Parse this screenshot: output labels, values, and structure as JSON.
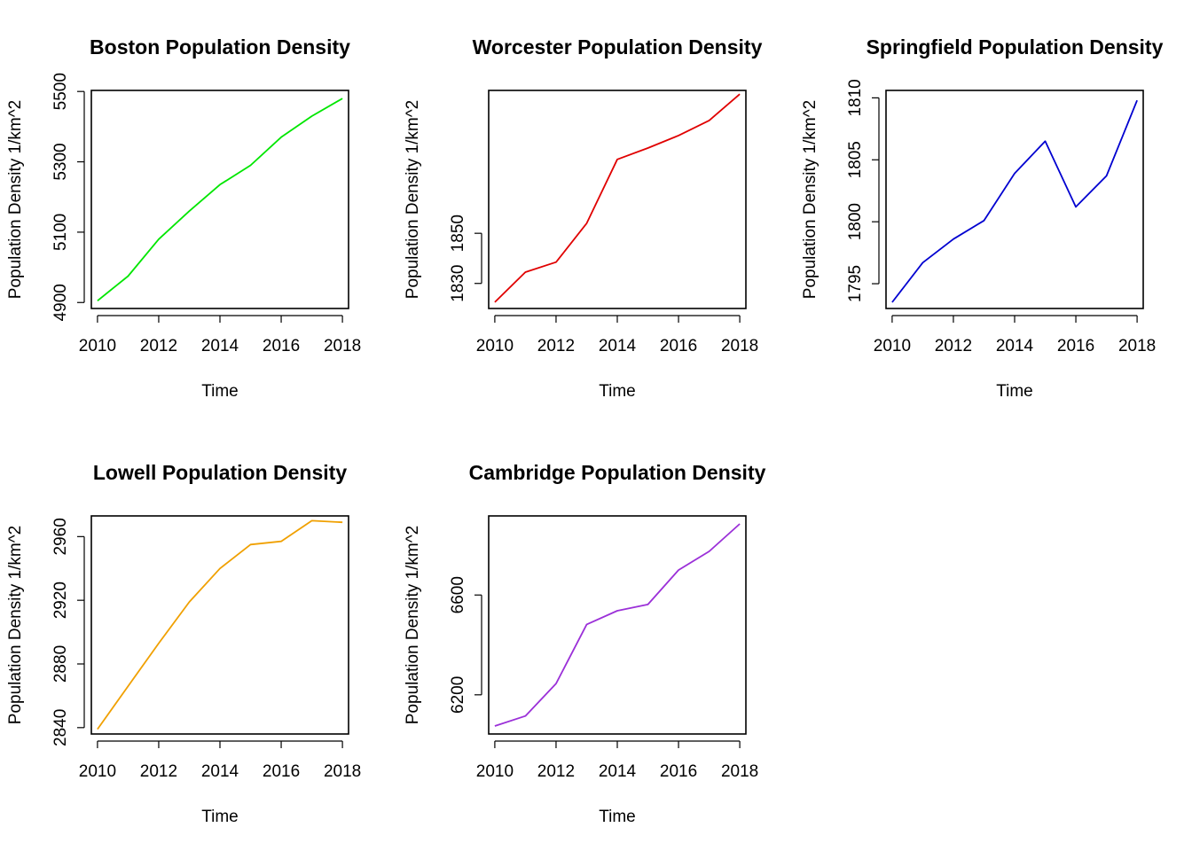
{
  "chart_data": [
    {
      "type": "line",
      "title": "Boston Population Density",
      "xlabel": "Time",
      "ylabel": "Population Density 1/km^2",
      "color": "#00e600",
      "x": [
        2010,
        2011,
        2012,
        2013,
        2014,
        2015,
        2016,
        2017,
        2018
      ],
      "values": [
        4905,
        4975,
        5080,
        5160,
        5235,
        5290,
        5370,
        5430,
        5480
      ],
      "xlim": [
        2009.8,
        2018.2
      ],
      "ylim": [
        4883,
        5503
      ],
      "xticks": [
        2010,
        2012,
        2014,
        2016,
        2018
      ],
      "yticks": [
        4900,
        5100,
        5300,
        5500
      ]
    },
    {
      "type": "line",
      "title": "Worcester Population Density",
      "xlabel": "Time",
      "ylabel": "Population Density 1/km^2",
      "color": "#e00000",
      "x": [
        2010,
        2011,
        2012,
        2013,
        2014,
        2015,
        2016,
        2017,
        2018
      ],
      "values": [
        1822.5,
        1834.5,
        1838.5,
        1854.0,
        1879.5,
        1884.0,
        1889.0,
        1895.0,
        1905.5
      ],
      "xlim": [
        2009.8,
        2018.2
      ],
      "ylim": [
        1820,
        1907
      ],
      "xticks": [
        2010,
        2012,
        2014,
        2016,
        2018
      ],
      "yticks": [
        1830,
        1850
      ]
    },
    {
      "type": "line",
      "title": "Springfield Population Density",
      "xlabel": "Time",
      "ylabel": "Population Density 1/km^2",
      "color": "#0000d0",
      "x": [
        2010,
        2011,
        2012,
        2013,
        2014,
        2015,
        2016,
        2017,
        2018
      ],
      "values": [
        1793.5,
        1796.7,
        1798.6,
        1800.1,
        1803.9,
        1806.5,
        1801.2,
        1803.7,
        1809.8
      ],
      "xlim": [
        2009.8,
        2018.2
      ],
      "ylim": [
        1793.0,
        1810.6
      ],
      "xticks": [
        2010,
        2012,
        2014,
        2016,
        2018
      ],
      "yticks": [
        1795,
        1800,
        1805,
        1810
      ]
    },
    {
      "type": "line",
      "title": "Lowell Population Density",
      "xlabel": "Time",
      "ylabel": "Population Density 1/km^2",
      "color": "#f0a000",
      "x": [
        2010,
        2011,
        2012,
        2013,
        2014,
        2015,
        2016,
        2017,
        2018
      ],
      "values": [
        2839,
        2866,
        2893,
        2919,
        2940,
        2955,
        2957,
        2970,
        2969
      ],
      "xlim": [
        2009.8,
        2018.2
      ],
      "ylim": [
        2836,
        2973
      ],
      "xticks": [
        2010,
        2012,
        2014,
        2016,
        2018
      ],
      "yticks": [
        2840,
        2880,
        2920,
        2960
      ]
    },
    {
      "type": "line",
      "title": "Cambridge Population Density",
      "xlabel": "Time",
      "ylabel": "Population Density 1/km^2",
      "color": "#9b30d8",
      "x": [
        2010,
        2011,
        2012,
        2013,
        2014,
        2015,
        2016,
        2017,
        2018
      ],
      "values": [
        6075,
        6115,
        6245,
        6482,
        6537,
        6562,
        6700,
        6775,
        6885
      ],
      "xlim": [
        2009.8,
        2018.2
      ],
      "ylim": [
        6043,
        6917
      ],
      "xticks": [
        2010,
        2012,
        2014,
        2016,
        2018
      ],
      "yticks": [
        6200,
        6600
      ]
    }
  ]
}
